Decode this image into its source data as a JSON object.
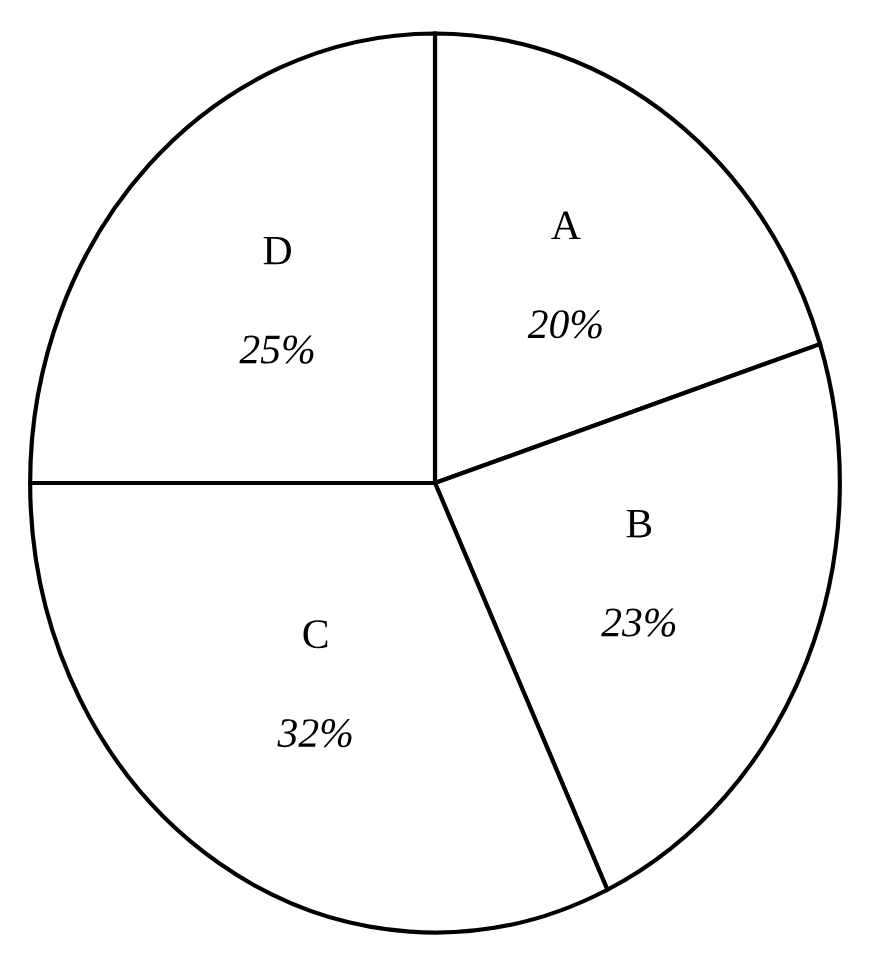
{
  "chart_data": {
    "type": "pie",
    "categories": [
      "A",
      "B",
      "C",
      "D"
    ],
    "values": [
      20,
      23,
      32,
      25
    ],
    "value_labels": [
      "20%",
      "23%",
      "32%",
      "25%"
    ],
    "colors": [
      "#ffffff",
      "#ffffff",
      "#ffffff",
      "#ffffff"
    ]
  }
}
